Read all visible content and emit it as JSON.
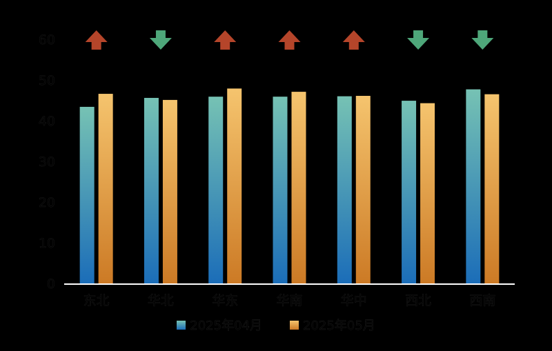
{
  "chart_data": {
    "type": "bar",
    "categories": [
      "东北",
      "华北",
      "华东",
      "华南",
      "华中",
      "西北",
      "西南"
    ],
    "series": [
      {
        "name": "2025年04月",
        "values": [
          43.4,
          45.6,
          45.9,
          45.9,
          46.0,
          44.9,
          47.7
        ],
        "color_top": "#76c2b4",
        "color_bottom": "#1b6db8"
      },
      {
        "name": "2025年05月",
        "values": [
          46.6,
          45.1,
          47.9,
          47.1,
          46.1,
          44.3,
          46.5
        ],
        "color_top": "#f5c46e",
        "color_bottom": "#cc7a25"
      }
    ],
    "trend": [
      "up",
      "down",
      "up",
      "up",
      "up",
      "down",
      "down"
    ],
    "trend_colors": {
      "up": "#b5452a",
      "down": "#4ea77a"
    },
    "y_ticks": [
      0,
      10,
      20,
      30,
      40,
      50,
      60
    ],
    "ylim": [
      0,
      60
    ],
    "grid": false,
    "legend_position": "bottom"
  }
}
